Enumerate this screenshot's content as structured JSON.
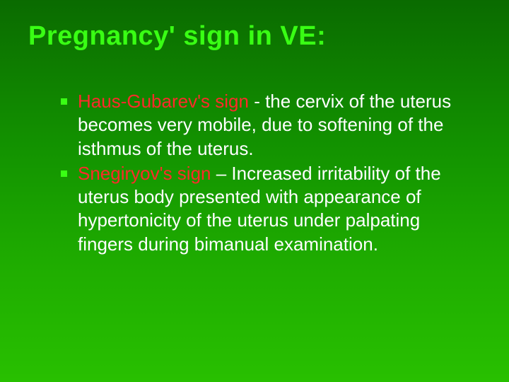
{
  "title": {
    "text": "Pregnancy' sign in VE:",
    "color": "#39ff14",
    "fontsize": 38,
    "margin_bottom": 54
  },
  "bullets": [
    {
      "marker_color": "#39ff14",
      "term": "Haus-Gubarev's sign",
      "term_color": "#ff2a2a",
      "separator": " -  ",
      "body": "the cervix of the uterus becomes very mobile, due to softening of the isthmus of the uterus.",
      "body_color": "#ffffff",
      "fontsize": 26
    },
    {
      "marker_color": "#39ff14",
      "term": "Snegiryov's sign",
      "term_color": "#ff2a2a",
      "separator": " – ",
      "body": "Increased irritability of the uterus body presented with appearance of hypertonicity of the uterus under palpating fingers during bimanual examination.",
      "body_color": "#ffffff",
      "fontsize": 26
    }
  ],
  "background": {
    "gradient_start": "#0a6b00",
    "gradient_end": "#28c000"
  }
}
